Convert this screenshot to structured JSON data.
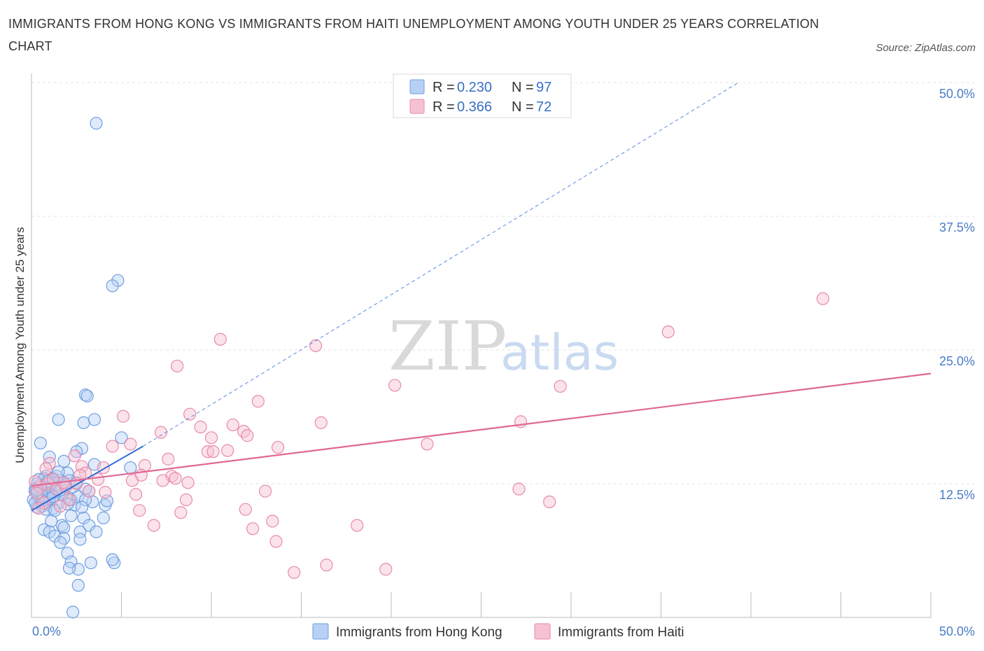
{
  "chart_data": {
    "type": "scatter",
    "title": "IMMIGRANTS FROM HONG KONG VS IMMIGRANTS FROM HAITI UNEMPLOYMENT AMONG YOUTH UNDER 25 YEARS CORRELATION CHART",
    "source": "Source: ZipAtlas.com",
    "ylabel": "Unemployment Among Youth under 25 years",
    "xlim": [
      0,
      50
    ],
    "ylim": [
      0,
      50
    ],
    "x_tick_labels": [
      "0.0%",
      "50.0%"
    ],
    "y_tick_labels": [
      "12.5%",
      "25.0%",
      "37.5%",
      "50.0%"
    ],
    "y_tick_values": [
      12.5,
      25.0,
      37.5,
      50.0
    ],
    "legend": [
      {
        "r_label": "R =",
        "r_value": "0.230",
        "n_label": "N =",
        "n_value": "97"
      },
      {
        "r_label": "R =",
        "r_value": "0.366",
        "n_label": "N =",
        "n_value": "72"
      }
    ],
    "watermark": {
      "zip": "ZIP",
      "atlas": "atlas"
    },
    "series": [
      {
        "name": "Immigrants from Hong Kong",
        "color": "#6f9fe0",
        "fill": "#b7d0f4",
        "line_color": "#2e6fd6",
        "trend": {
          "x0": 0.0,
          "y0": 10.0,
          "x1": 6.2,
          "y1": 16.0,
          "dashed_to_x": 39.3,
          "dashed_to_y": 50.0
        },
        "points": [
          [
            3.6,
            46.2
          ],
          [
            4.8,
            31.5
          ],
          [
            4.5,
            31.0
          ],
          [
            3.0,
            20.8
          ],
          [
            3.1,
            20.7
          ],
          [
            1.5,
            18.5
          ],
          [
            2.9,
            18.2
          ],
          [
            3.5,
            18.5
          ],
          [
            0.5,
            16.3
          ],
          [
            5.0,
            16.8
          ],
          [
            2.8,
            15.8
          ],
          [
            2.5,
            15.5
          ],
          [
            1.0,
            15.0
          ],
          [
            1.8,
            14.6
          ],
          [
            3.5,
            14.3
          ],
          [
            5.5,
            14.0
          ],
          [
            0.8,
            13.2
          ],
          [
            2.0,
            13.5
          ],
          [
            1.2,
            13.0
          ],
          [
            1.6,
            12.8
          ],
          [
            0.3,
            12.5
          ],
          [
            0.6,
            12.2
          ],
          [
            0.9,
            12.0
          ],
          [
            1.1,
            12.3
          ],
          [
            1.4,
            12.1
          ],
          [
            0.2,
            11.8
          ],
          [
            0.4,
            11.5
          ],
          [
            0.7,
            11.6
          ],
          [
            1.3,
            11.4
          ],
          [
            1.9,
            11.2
          ],
          [
            2.2,
            11.0
          ],
          [
            0.1,
            11.0
          ],
          [
            0.5,
            10.8
          ],
          [
            0.8,
            10.6
          ],
          [
            1.0,
            10.9
          ],
          [
            1.5,
            10.7
          ],
          [
            2.4,
            10.5
          ],
          [
            3.4,
            10.8
          ],
          [
            4.1,
            10.5
          ],
          [
            0.3,
            10.3
          ],
          [
            0.6,
            10.4
          ],
          [
            1.2,
            10.2
          ],
          [
            2.0,
            10.6
          ],
          [
            3.2,
            11.8
          ],
          [
            3.0,
            12.0
          ],
          [
            0.4,
            11.2
          ],
          [
            0.9,
            11.7
          ],
          [
            1.7,
            11.5
          ],
          [
            2.6,
            11.3
          ],
          [
            0.2,
            12.0
          ],
          [
            1.1,
            12.6
          ],
          [
            2.1,
            12.8
          ],
          [
            0.7,
            13.0
          ],
          [
            1.4,
            13.2
          ],
          [
            4.0,
            9.3
          ],
          [
            2.9,
            9.3
          ],
          [
            2.2,
            9.5
          ],
          [
            1.1,
            9.0
          ],
          [
            1.7,
            8.6
          ],
          [
            1.8,
            8.4
          ],
          [
            3.2,
            8.6
          ],
          [
            0.7,
            8.2
          ],
          [
            1.0,
            8.0
          ],
          [
            2.7,
            8.0
          ],
          [
            3.6,
            8.0
          ],
          [
            1.3,
            7.6
          ],
          [
            1.8,
            7.4
          ],
          [
            2.7,
            7.3
          ],
          [
            1.6,
            7.0
          ],
          [
            2.0,
            6.0
          ],
          [
            2.2,
            5.2
          ],
          [
            3.3,
            5.1
          ],
          [
            4.6,
            5.1
          ],
          [
            4.5,
            5.4
          ],
          [
            2.6,
            4.5
          ],
          [
            2.1,
            4.6
          ],
          [
            2.6,
            3.0
          ],
          [
            2.3,
            0.5
          ],
          [
            0.6,
            11.4
          ],
          [
            1.0,
            11.1
          ],
          [
            1.6,
            11.9
          ],
          [
            0.5,
            12.4
          ],
          [
            2.3,
            12.2
          ],
          [
            0.8,
            10.1
          ],
          [
            1.3,
            10.0
          ],
          [
            0.2,
            10.7
          ],
          [
            3.0,
            11.0
          ],
          [
            2.8,
            10.3
          ],
          [
            0.4,
            12.9
          ],
          [
            1.2,
            11.3
          ],
          [
            0.9,
            12.7
          ],
          [
            1.5,
            13.6
          ],
          [
            0.3,
            11.9
          ],
          [
            0.6,
            10.9
          ],
          [
            2.5,
            12.6
          ],
          [
            1.9,
            12.4
          ],
          [
            4.2,
            10.9
          ]
        ]
      },
      {
        "name": "Immigrants from Haiti",
        "color": "#e88aa9",
        "fill": "#f6c1d3",
        "line_color": "#e06795",
        "trend": {
          "x0": 0.0,
          "y0": 12.3,
          "x1": 50.0,
          "y1": 22.8
        },
        "points": [
          [
            44.0,
            29.8
          ],
          [
            35.4,
            26.7
          ],
          [
            10.5,
            26.0
          ],
          [
            15.8,
            25.4
          ],
          [
            8.1,
            23.5
          ],
          [
            20.2,
            21.7
          ],
          [
            29.4,
            21.6
          ],
          [
            12.6,
            20.2
          ],
          [
            8.8,
            19.0
          ],
          [
            5.1,
            18.8
          ],
          [
            27.2,
            18.3
          ],
          [
            16.1,
            18.2
          ],
          [
            11.2,
            18.0
          ],
          [
            9.4,
            17.8
          ],
          [
            7.2,
            17.3
          ],
          [
            11.8,
            17.4
          ],
          [
            12.0,
            17.0
          ],
          [
            10.0,
            16.8
          ],
          [
            22.0,
            16.2
          ],
          [
            13.7,
            15.9
          ],
          [
            4.5,
            16.0
          ],
          [
            5.5,
            16.2
          ],
          [
            10.9,
            15.6
          ],
          [
            9.8,
            15.5
          ],
          [
            10.1,
            15.5
          ],
          [
            7.6,
            14.8
          ],
          [
            6.3,
            14.2
          ],
          [
            2.8,
            14.1
          ],
          [
            4.0,
            14.0
          ],
          [
            3.0,
            13.5
          ],
          [
            6.1,
            13.3
          ],
          [
            7.8,
            13.2
          ],
          [
            8.0,
            13.0
          ],
          [
            7.3,
            12.8
          ],
          [
            5.6,
            12.8
          ],
          [
            8.7,
            12.6
          ],
          [
            2.5,
            12.5
          ],
          [
            0.9,
            12.5
          ],
          [
            1.4,
            12.0
          ],
          [
            0.5,
            12.2
          ],
          [
            1.9,
            12.2
          ],
          [
            13.0,
            11.8
          ],
          [
            3.2,
            11.8
          ],
          [
            0.3,
            11.6
          ],
          [
            5.8,
            11.5
          ],
          [
            8.6,
            11.0
          ],
          [
            27.1,
            12.0
          ],
          [
            28.8,
            10.8
          ],
          [
            2.1,
            11.0
          ],
          [
            0.7,
            10.7
          ],
          [
            11.9,
            10.1
          ],
          [
            6.0,
            10.0
          ],
          [
            8.3,
            9.8
          ],
          [
            0.4,
            10.2
          ],
          [
            1.6,
            10.4
          ],
          [
            13.4,
            9.0
          ],
          [
            6.8,
            8.6
          ],
          [
            18.1,
            8.6
          ],
          [
            12.3,
            8.3
          ],
          [
            13.6,
            7.1
          ],
          [
            16.4,
            4.9
          ],
          [
            19.7,
            4.5
          ],
          [
            14.6,
            4.2
          ],
          [
            4.1,
            11.7
          ],
          [
            2.7,
            13.3
          ],
          [
            3.7,
            12.9
          ],
          [
            1.0,
            14.4
          ],
          [
            0.8,
            13.9
          ],
          [
            2.4,
            15.1
          ],
          [
            1.2,
            12.9
          ],
          [
            0.2,
            12.7
          ],
          [
            1.8,
            12.6
          ]
        ]
      }
    ]
  }
}
